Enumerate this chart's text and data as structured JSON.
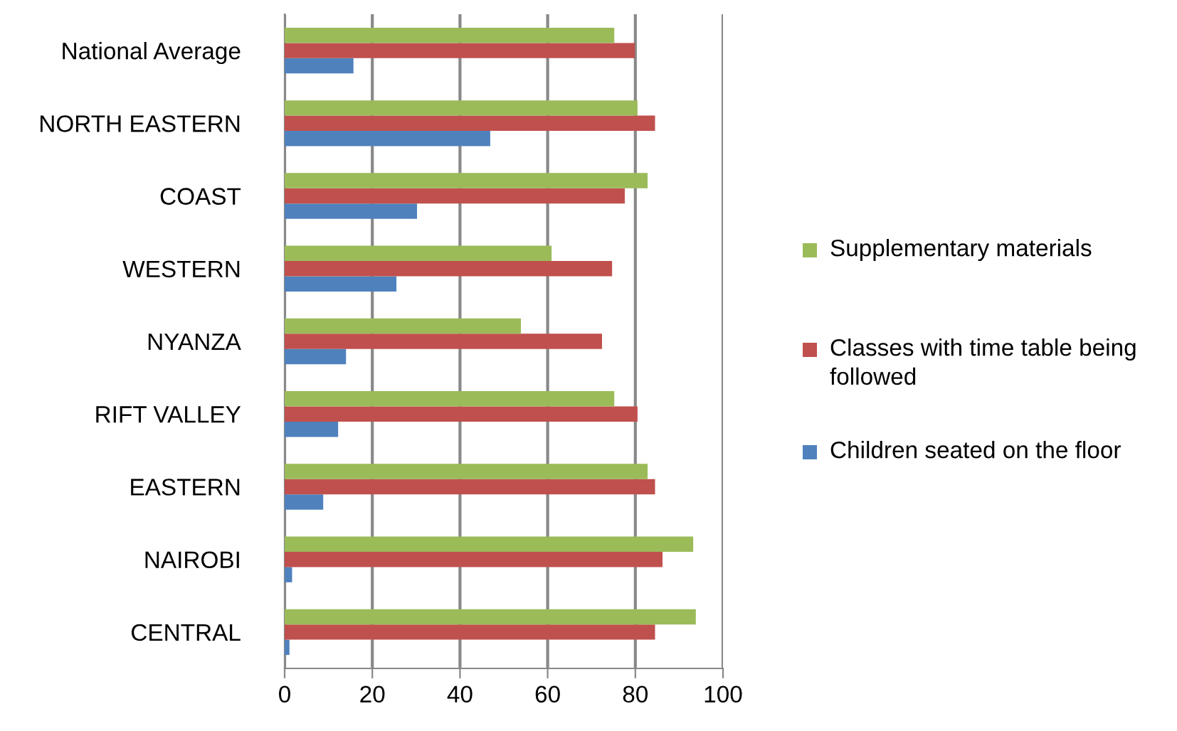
{
  "chart_data": {
    "type": "bar",
    "orientation": "horizontal",
    "categories": [
      "National Average",
      "NORTH EASTERN",
      "COAST",
      "WESTERN",
      "NYANZA",
      "RIFT VALLEY",
      "EASTERN",
      "NAIROBI",
      "CENTRAL"
    ],
    "series": [
      {
        "name": "Children seated on the floor",
        "color": "#4f81bd",
        "values": [
          15.7,
          46.9,
          30.2,
          25.5,
          14,
          12.2,
          8.8,
          1.7,
          1.1
        ]
      },
      {
        "name": "Classes with time table being followed",
        "color": "#c0504d",
        "values": [
          79.9,
          84.5,
          77.6,
          74.7,
          72.4,
          80.5,
          84.5,
          86.2,
          84.5
        ]
      },
      {
        "name": "Supplementary materials",
        "color": "#9bbb59",
        "values": [
          75.2,
          80.5,
          82.8,
          60.9,
          53.9,
          75.2,
          82.8,
          93.2,
          93.8
        ]
      }
    ],
    "xlim": [
      0,
      100
    ],
    "xticks": [
      0,
      20,
      40,
      60,
      80,
      100
    ],
    "grid": "x",
    "legend": "right"
  }
}
